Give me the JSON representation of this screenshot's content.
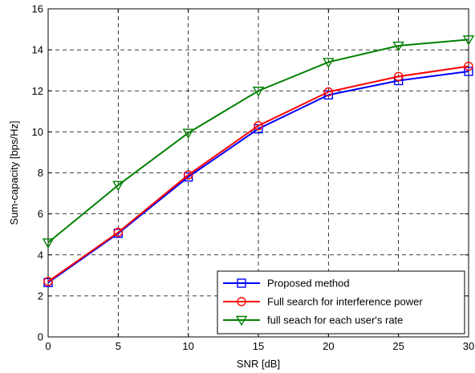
{
  "chart_data": {
    "type": "line",
    "xlabel": "SNR [dB]",
    "ylabel": "Sum-capacity [bps/Hz]",
    "xlim": [
      0,
      30
    ],
    "ylim": [
      0,
      16
    ],
    "xticks": [
      0,
      5,
      10,
      15,
      20,
      25,
      30
    ],
    "yticks": [
      0,
      2,
      4,
      6,
      8,
      10,
      12,
      14,
      16
    ],
    "grid": true,
    "legend_position": "bottom-right",
    "x": [
      0,
      5,
      10,
      15,
      20,
      25,
      30
    ],
    "series": [
      {
        "name": "Proposed method",
        "color": "#0000ff",
        "marker": "square",
        "values": [
          2.65,
          5.05,
          7.8,
          10.15,
          11.8,
          12.5,
          12.95
        ]
      },
      {
        "name": "Full search for interference power",
        "color": "#ff0000",
        "marker": "circle",
        "values": [
          2.7,
          5.1,
          7.9,
          10.3,
          11.95,
          12.7,
          13.2
        ]
      },
      {
        "name": "full seach for each user's rate",
        "color": "#008000",
        "marker": "triangle-down",
        "values": [
          4.6,
          7.4,
          9.95,
          12.0,
          13.4,
          14.2,
          14.5
        ]
      }
    ]
  }
}
